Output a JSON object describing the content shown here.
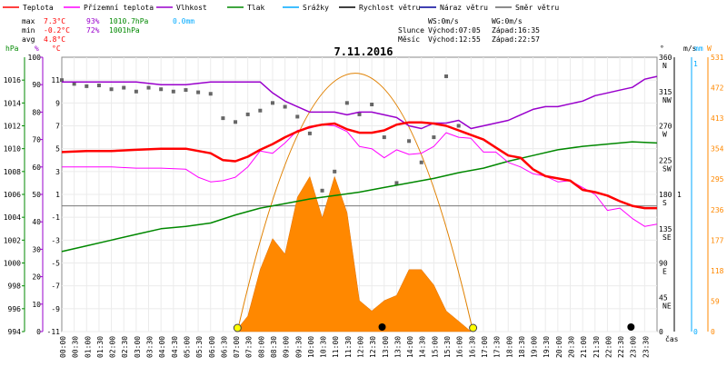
{
  "legend": [
    {
      "label": "Teplota",
      "color": "#ff0000"
    },
    {
      "label": "Přízemní teplota",
      "color": "#ff00ff"
    },
    {
      "label": "Vlhkost",
      "color": "#9900cc"
    },
    {
      "label": "Tlak",
      "color": "#008800"
    },
    {
      "label": "Srážky",
      "color": "#00aaff"
    },
    {
      "label": "Rychlost větru",
      "color": "#000000"
    },
    {
      "label": "Náraz větru",
      "color": "#000099"
    },
    {
      "label": "Směr větru",
      "color": "#666666"
    }
  ],
  "stats": {
    "max_label": "max",
    "max_temp": "7.3°C",
    "max_hum": "93%",
    "max_press": "1010.7hPa",
    "max_rain": "0.0mm",
    "min_label": "min",
    "min_temp": "-0.2°C",
    "min_hum": "72%",
    "min_press": "1001hPa",
    "avg_label": "avg",
    "avg_temp": "4.8°C"
  },
  "wind_info": {
    "ws": "WS:0m/s",
    "wg": "WG:0m/s"
  },
  "sun": {
    "label": "Slunce",
    "rise": "Východ:07:05",
    "set": "Západ:16:35"
  },
  "moon": {
    "label": "Měsíc",
    "rise": "Východ:12:55",
    "set": "Západ:22:57"
  },
  "date": "7.11.2016",
  "axis_units": {
    "hpa": "hPa",
    "pct": "%",
    "degc": "°C",
    "deg": "°",
    "ms": "m/s",
    "mm": "mm",
    "w": "W",
    "time": "čas"
  },
  "chart_data": {
    "type": "line",
    "title": "7.11.2016",
    "x_ticks": [
      "00:00",
      "00:30",
      "01:00",
      "01:30",
      "02:00",
      "02:30",
      "03:00",
      "03:30",
      "04:00",
      "04:30",
      "05:00",
      "05:30",
      "06:00",
      "06:30",
      "07:00",
      "07:30",
      "08:00",
      "08:30",
      "09:00",
      "09:30",
      "10:00",
      "10:30",
      "11:00",
      "11:30",
      "12:00",
      "12:30",
      "13:00",
      "13:30",
      "14:00",
      "14:30",
      "15:00",
      "15:30",
      "16:00",
      "16:30",
      "17:00",
      "17:30",
      "18:00",
      "18:30",
      "19:00",
      "19:30",
      "20:00",
      "20:30",
      "21:00",
      "21:30",
      "22:00",
      "22:30",
      "23:00",
      "23:30"
    ],
    "axes": {
      "hpa": {
        "ticks": [
          994,
          996,
          998,
          1000,
          1002,
          1004,
          1006,
          1008,
          1010,
          1012,
          1014,
          1016
        ],
        "ylim": [
          994,
          1018
        ]
      },
      "pct": {
        "ticks": [
          0,
          10,
          20,
          30,
          40,
          50,
          60,
          70,
          80,
          90,
          100
        ],
        "ylim": [
          0,
          100
        ]
      },
      "degc": {
        "ticks": [
          -11,
          -9,
          -7,
          -5,
          -3,
          -1,
          1,
          3,
          5,
          7,
          9,
          11
        ],
        "ylim": [
          -11,
          13
        ]
      },
      "dir": {
        "ticks": [
          "0",
          "45\nNE",
          "90\nE",
          "135\nSE",
          "180\nS",
          "225\nSW",
          "270\nW",
          "315\nNW",
          "360\nN"
        ],
        "ylim": [
          0,
          360
        ]
      },
      "ms": {
        "ticks": [
          "0",
          "1"
        ]
      },
      "mm": {
        "ticks": [
          "0",
          "1"
        ]
      },
      "w": {
        "ticks": [
          0,
          59,
          118,
          177,
          236,
          295,
          354,
          413,
          472,
          531
        ],
        "ylim": [
          0,
          531
        ]
      }
    },
    "series": [
      {
        "name": "Teplota",
        "color": "#ff0000",
        "axis": "degc",
        "x": [
          0,
          1,
          2,
          3,
          4,
          5,
          6,
          6.5,
          7,
          7.5,
          8,
          8.5,
          9,
          9.5,
          10,
          10.5,
          11,
          11.5,
          12,
          12.5,
          13,
          13.5,
          14,
          14.5,
          15,
          15.5,
          16,
          16.5,
          17,
          17.5,
          18,
          18.5,
          19,
          19.5,
          20,
          20.5,
          21,
          21.5,
          22,
          22.5,
          23,
          23.5,
          24
        ],
        "y": [
          4.7,
          4.8,
          4.8,
          4.9,
          5.0,
          5.0,
          4.6,
          4.0,
          3.9,
          4.3,
          4.9,
          5.4,
          6.0,
          6.5,
          6.9,
          7.1,
          7.2,
          6.7,
          6.4,
          6.4,
          6.6,
          7.1,
          7.3,
          7.3,
          7.2,
          7.0,
          6.6,
          6.2,
          5.8,
          5.1,
          4.4,
          4.2,
          3.2,
          2.6,
          2.4,
          2.2,
          1.4,
          1.2,
          0.9,
          0.4,
          0.0,
          -0.2,
          -0.2
        ]
      },
      {
        "name": "Přízemní teplota",
        "color": "#ff00ff",
        "axis": "degc",
        "x": [
          0,
          1,
          2,
          3,
          4,
          5,
          5.5,
          6,
          6.5,
          7,
          7.5,
          8,
          8.5,
          9,
          9.5,
          10,
          10.5,
          11,
          11.5,
          12,
          12.5,
          13,
          13.5,
          14,
          14.5,
          15,
          15.5,
          16,
          16.5,
          17,
          17.5,
          18,
          18.5,
          19,
          19.5,
          20,
          20.5,
          21,
          21.5,
          22,
          22.5,
          23,
          23.5,
          24
        ],
        "y": [
          3.4,
          3.4,
          3.4,
          3.3,
          3.3,
          3.2,
          2.5,
          2.1,
          2.2,
          2.5,
          3.4,
          4.8,
          4.6,
          5.5,
          6.6,
          6.8,
          7.1,
          7.0,
          6.5,
          5.2,
          5.0,
          4.2,
          4.9,
          4.5,
          4.6,
          5.2,
          6.4,
          6.0,
          5.9,
          4.7,
          4.7,
          3.8,
          3.4,
          2.8,
          2.6,
          2.1,
          2.2,
          1.6,
          1.0,
          -0.4,
          -0.2,
          -1.1,
          -1.8,
          -1.6
        ]
      },
      {
        "name": "Vlhkost",
        "color": "#9900cc",
        "axis": "pct",
        "x": [
          0,
          1,
          2,
          3,
          4,
          5,
          6,
          7,
          8,
          8.5,
          9,
          9.5,
          10,
          10.5,
          11,
          11.5,
          12,
          12.5,
          13,
          13.5,
          14,
          14.5,
          15,
          15.5,
          16,
          16.5,
          17,
          17.5,
          18,
          18.5,
          19,
          19.5,
          20,
          20.5,
          21,
          21.5,
          22,
          22.5,
          23,
          23.5,
          24
        ],
        "y": [
          91,
          91,
          91,
          91,
          90,
          90,
          91,
          91,
          91,
          87,
          84,
          82,
          80,
          80,
          80,
          79,
          80,
          80,
          79,
          78,
          75,
          74,
          76,
          76,
          77,
          74,
          75,
          76,
          77,
          79,
          81,
          82,
          82,
          83,
          84,
          86,
          87,
          88,
          89,
          92,
          93
        ]
      },
      {
        "name": "Tlak",
        "color": "#008800",
        "axis": "hpa",
        "x": [
          0,
          1,
          2,
          3,
          4,
          5,
          6,
          7,
          8,
          9,
          10,
          11,
          12,
          13,
          14,
          15,
          16,
          17,
          18,
          19,
          20,
          21,
          22,
          23,
          24
        ],
        "y": [
          1001.0,
          1001.5,
          1002.0,
          1002.5,
          1003.0,
          1003.2,
          1003.5,
          1004.2,
          1004.8,
          1005.2,
          1005.6,
          1005.9,
          1006.2,
          1006.6,
          1007.0,
          1007.4,
          1007.9,
          1008.3,
          1008.9,
          1009.4,
          1009.9,
          1010.2,
          1010.4,
          1010.6,
          1010.5
        ]
      },
      {
        "name": "Směr větru",
        "color": "#666666",
        "axis": "dir",
        "x": [
          0,
          0.5,
          1,
          1.5,
          2,
          2.5,
          3,
          3.5,
          4,
          4.5,
          5,
          5.5,
          6,
          6.5,
          7,
          7.5,
          8,
          8.5,
          9,
          9.5,
          10,
          10.5,
          11,
          11.5,
          12,
          12.5,
          13,
          13.5,
          14,
          14.5,
          15,
          15.5,
          16
        ],
        "y": [
          330,
          325,
          322,
          323,
          318,
          320,
          315,
          320,
          318,
          315,
          317,
          314,
          312,
          280,
          275,
          285,
          290,
          300,
          295,
          282,
          260,
          185,
          210,
          300,
          285,
          298,
          255,
          195,
          250,
          222,
          255,
          335,
          270
        ]
      },
      {
        "name": "Sluneční záření",
        "color": "#ff8800",
        "axis": "w",
        "x": [
          7,
          7.5,
          8,
          8.5,
          9,
          9.5,
          10,
          10.5,
          11,
          11.5,
          12,
          12.5,
          13,
          13.5,
          14,
          14.5,
          15,
          15.5,
          16,
          16.5
        ],
        "y": [
          0,
          30,
          120,
          180,
          150,
          260,
          300,
          220,
          300,
          230,
          60,
          40,
          60,
          70,
          120,
          120,
          90,
          40,
          20,
          0
        ]
      }
    ],
    "clear_sky_curve": {
      "x": [
        7.08,
        11.83,
        16.58
      ],
      "y": [
        0,
        500,
        0
      ]
    },
    "markers": {
      "sunrise": "07:05",
      "sunset": "16:35",
      "moonrise": "12:55",
      "moonset": "22:57"
    }
  }
}
